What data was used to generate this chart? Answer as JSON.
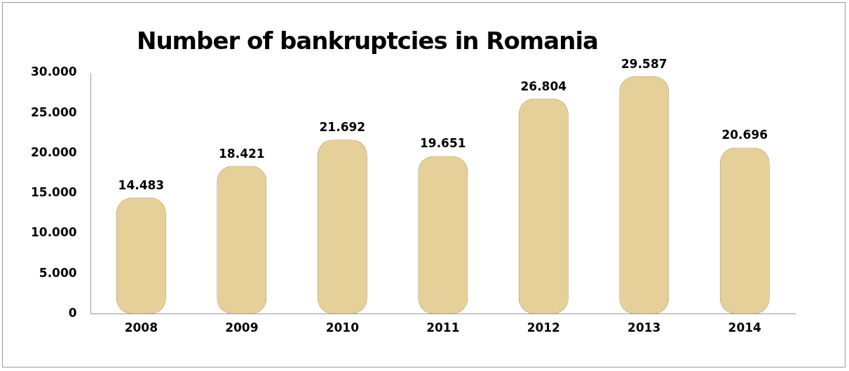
{
  "chart_data": {
    "type": "bar",
    "title": "Number of bankruptcies in Romania",
    "categories": [
      "2008",
      "2009",
      "2010",
      "2011",
      "2012",
      "2013",
      "2014"
    ],
    "values": [
      14483,
      18421,
      21692,
      19651,
      26804,
      29587,
      20696
    ],
    "value_labels": [
      "14.483",
      "18.421",
      "21.692",
      "19.651",
      "26.804",
      "29.587",
      "20.696"
    ],
    "color": "#e6d09a",
    "ylim": [
      0,
      30000
    ],
    "yticks": [
      {
        "value": 0,
        "label": "0"
      },
      {
        "value": 5000,
        "label": "5.000"
      },
      {
        "value": 10000,
        "label": "10.000"
      },
      {
        "value": 15000,
        "label": "15.000"
      },
      {
        "value": 20000,
        "label": "20.000"
      },
      {
        "value": 25000,
        "label": "25.000"
      },
      {
        "value": 30000,
        "label": "30.000"
      }
    ],
    "grid": false
  }
}
